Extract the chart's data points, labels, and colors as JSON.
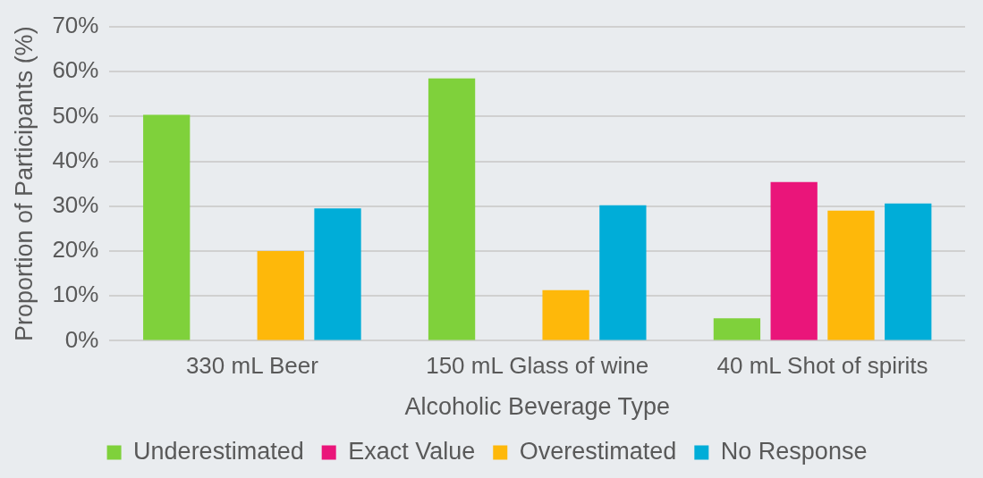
{
  "chart_data": {
    "type": "bar",
    "xlabel": "Alcoholic Beverage Type",
    "ylabel": "Proportion of Participants (%)",
    "categories": [
      "330 mL Beer",
      "150 mL Glass of wine",
      "40 mL Shot of spirits"
    ],
    "series": [
      {
        "name": "Underestimated",
        "color": "#7fd13b",
        "values": [
          50.4,
          58.5,
          5
        ]
      },
      {
        "name": "Exact Value",
        "color": "#ea157a",
        "values": [
          0,
          0,
          35.4
        ]
      },
      {
        "name": "Overestimated",
        "color": "#feb80a",
        "values": [
          20,
          11.3,
          29
        ]
      },
      {
        "name": "No Response",
        "color": "#00add8",
        "values": [
          29.5,
          30.2,
          30.6
        ]
      }
    ],
    "ylim": [
      0,
      70
    ],
    "yticks": [
      {
        "value": 0,
        "label": "0%"
      },
      {
        "value": 10,
        "label": "10%"
      },
      {
        "value": 20,
        "label": "20%"
      },
      {
        "value": 30,
        "label": "30%"
      },
      {
        "value": 40,
        "label": "40%"
      },
      {
        "value": 50,
        "label": "50%"
      },
      {
        "value": 60,
        "label": "60%"
      },
      {
        "value": 70,
        "label": "70%"
      }
    ],
    "grid": "y",
    "legend": "bottom"
  }
}
